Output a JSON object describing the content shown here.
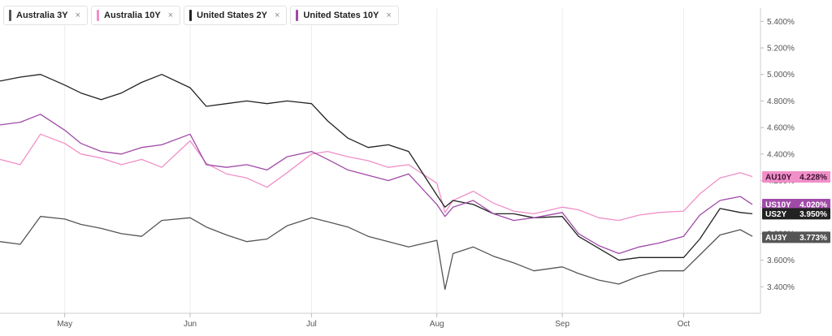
{
  "legend": [
    {
      "label": "Australia 3Y",
      "color": "#555555"
    },
    {
      "label": "Australia 10Y",
      "color": "#f08fc8"
    },
    {
      "label": "United States 2Y",
      "color": "#222222"
    },
    {
      "label": "United States 10Y",
      "color": "#a04aa8"
    }
  ],
  "legend_close": "×",
  "chart_data": {
    "type": "line",
    "title": "",
    "xlabel": "",
    "ylabel": "",
    "ylim": [
      3.2,
      5.5
    ],
    "xlim": [
      "2023-04-15",
      "2023-10-20"
    ],
    "y_ticks": [
      "3.400%",
      "3.600%",
      "3.800%",
      "4.000%",
      "4.200%",
      "4.400%",
      "4.600%",
      "4.800%",
      "5.000%",
      "5.200%",
      "5.400%"
    ],
    "y_tick_values": [
      3.4,
      3.6,
      3.8,
      4.0,
      4.2,
      4.4,
      4.6,
      4.8,
      5.0,
      5.2,
      5.4
    ],
    "x_ticks": [
      "May",
      "Jun",
      "Jul",
      "Aug",
      "Sep",
      "Oct"
    ],
    "x_tick_dates": [
      "2023-05-01",
      "2023-06-01",
      "2023-07-01",
      "2023-08-01",
      "2023-09-01",
      "2023-10-01"
    ],
    "grid": "vertical",
    "series": [
      {
        "name": "Australia 3Y",
        "color": "#555555",
        "x": [
          "2023-04-15",
          "2023-04-20",
          "2023-04-25",
          "2023-05-01",
          "2023-05-05",
          "2023-05-10",
          "2023-05-15",
          "2023-05-20",
          "2023-05-25",
          "2023-06-01",
          "2023-06-05",
          "2023-06-10",
          "2023-06-15",
          "2023-06-20",
          "2023-06-25",
          "2023-07-01",
          "2023-07-05",
          "2023-07-10",
          "2023-07-15",
          "2023-07-20",
          "2023-07-25",
          "2023-08-01",
          "2023-08-03",
          "2023-08-05",
          "2023-08-10",
          "2023-08-15",
          "2023-08-20",
          "2023-08-25",
          "2023-09-01",
          "2023-09-05",
          "2023-09-10",
          "2023-09-15",
          "2023-09-20",
          "2023-09-25",
          "2023-10-01",
          "2023-10-05",
          "2023-10-10",
          "2023-10-15",
          "2023-10-18"
        ],
        "values": [
          3.74,
          3.72,
          3.93,
          3.91,
          3.87,
          3.84,
          3.8,
          3.78,
          3.9,
          3.92,
          3.85,
          3.79,
          3.74,
          3.76,
          3.86,
          3.92,
          3.89,
          3.85,
          3.78,
          3.74,
          3.7,
          3.75,
          3.38,
          3.65,
          3.7,
          3.63,
          3.58,
          3.52,
          3.55,
          3.5,
          3.45,
          3.42,
          3.48,
          3.52,
          3.52,
          3.64,
          3.79,
          3.83,
          3.78
        ]
      },
      {
        "name": "Australia 10Y",
        "color": "#f08fc8",
        "x": [
          "2023-04-15",
          "2023-04-20",
          "2023-04-25",
          "2023-05-01",
          "2023-05-05",
          "2023-05-10",
          "2023-05-15",
          "2023-05-20",
          "2023-05-25",
          "2023-06-01",
          "2023-06-05",
          "2023-06-10",
          "2023-06-15",
          "2023-06-20",
          "2023-06-25",
          "2023-07-01",
          "2023-07-05",
          "2023-07-10",
          "2023-07-15",
          "2023-07-20",
          "2023-07-25",
          "2023-08-01",
          "2023-08-03",
          "2023-08-05",
          "2023-08-10",
          "2023-08-15",
          "2023-08-20",
          "2023-08-25",
          "2023-09-01",
          "2023-09-05",
          "2023-09-10",
          "2023-09-15",
          "2023-09-20",
          "2023-09-25",
          "2023-10-01",
          "2023-10-05",
          "2023-10-10",
          "2023-10-15",
          "2023-10-18"
        ],
        "values": [
          4.36,
          4.32,
          4.55,
          4.48,
          4.4,
          4.37,
          4.32,
          4.36,
          4.3,
          4.5,
          4.33,
          4.25,
          4.22,
          4.15,
          4.26,
          4.4,
          4.42,
          4.38,
          4.35,
          4.3,
          4.32,
          4.18,
          3.96,
          4.05,
          4.12,
          4.03,
          3.97,
          3.95,
          4.0,
          3.98,
          3.92,
          3.9,
          3.94,
          3.96,
          3.97,
          4.1,
          4.22,
          4.26,
          4.23
        ]
      },
      {
        "name": "United States 2Y",
        "color": "#222222",
        "x": [
          "2023-04-15",
          "2023-04-20",
          "2023-04-25",
          "2023-05-01",
          "2023-05-05",
          "2023-05-10",
          "2023-05-15",
          "2023-05-20",
          "2023-05-25",
          "2023-06-01",
          "2023-06-05",
          "2023-06-10",
          "2023-06-15",
          "2023-06-20",
          "2023-06-25",
          "2023-07-01",
          "2023-07-05",
          "2023-07-10",
          "2023-07-15",
          "2023-07-20",
          "2023-07-25",
          "2023-08-01",
          "2023-08-03",
          "2023-08-05",
          "2023-08-10",
          "2023-08-15",
          "2023-08-20",
          "2023-08-25",
          "2023-09-01",
          "2023-09-05",
          "2023-09-10",
          "2023-09-15",
          "2023-09-20",
          "2023-09-25",
          "2023-10-01",
          "2023-10-05",
          "2023-10-10",
          "2023-10-15",
          "2023-10-18"
        ],
        "values": [
          4.95,
          4.98,
          5.0,
          4.92,
          4.86,
          4.81,
          4.86,
          4.94,
          5.0,
          4.9,
          4.76,
          4.78,
          4.8,
          4.78,
          4.8,
          4.78,
          4.65,
          4.52,
          4.45,
          4.47,
          4.42,
          4.09,
          4.0,
          4.05,
          4.02,
          3.95,
          3.95,
          3.92,
          3.93,
          3.78,
          3.69,
          3.6,
          3.62,
          3.62,
          3.62,
          3.76,
          3.99,
          3.96,
          3.95
        ]
      },
      {
        "name": "United States 10Y",
        "color": "#a04aa8",
        "x": [
          "2023-04-15",
          "2023-04-20",
          "2023-04-25",
          "2023-05-01",
          "2023-05-05",
          "2023-05-10",
          "2023-05-15",
          "2023-05-20",
          "2023-05-25",
          "2023-06-01",
          "2023-06-05",
          "2023-06-10",
          "2023-06-15",
          "2023-06-20",
          "2023-06-25",
          "2023-07-01",
          "2023-07-05",
          "2023-07-10",
          "2023-07-15",
          "2023-07-20",
          "2023-07-25",
          "2023-08-01",
          "2023-08-03",
          "2023-08-05",
          "2023-08-10",
          "2023-08-15",
          "2023-08-20",
          "2023-08-25",
          "2023-09-01",
          "2023-09-05",
          "2023-09-10",
          "2023-09-15",
          "2023-09-20",
          "2023-09-25",
          "2023-10-01",
          "2023-10-05",
          "2023-10-10",
          "2023-10-15",
          "2023-10-18"
        ],
        "values": [
          4.62,
          4.64,
          4.7,
          4.58,
          4.48,
          4.42,
          4.4,
          4.45,
          4.47,
          4.55,
          4.32,
          4.3,
          4.32,
          4.28,
          4.38,
          4.42,
          4.36,
          4.28,
          4.24,
          4.2,
          4.25,
          4.02,
          3.93,
          4.0,
          4.05,
          3.95,
          3.9,
          3.92,
          3.96,
          3.8,
          3.71,
          3.65,
          3.7,
          3.73,
          3.78,
          3.94,
          4.05,
          4.08,
          4.02
        ]
      }
    ],
    "end_tags": [
      {
        "label": "AU10Y",
        "value": "4.228%",
        "y": 4.228,
        "color": "#f08fc8",
        "text_color": "#3a1030"
      },
      {
        "label": "US10Y",
        "value": "4.020%",
        "y": 4.02,
        "color": "#a04aa8",
        "text_color": "#ffffff"
      },
      {
        "label": "US2Y",
        "value": "3.950%",
        "y": 3.95,
        "color": "#222222",
        "text_color": "#ffffff"
      },
      {
        "label": "AU3Y",
        "value": "3.773%",
        "y": 3.773,
        "color": "#555555",
        "text_color": "#ffffff"
      }
    ]
  }
}
